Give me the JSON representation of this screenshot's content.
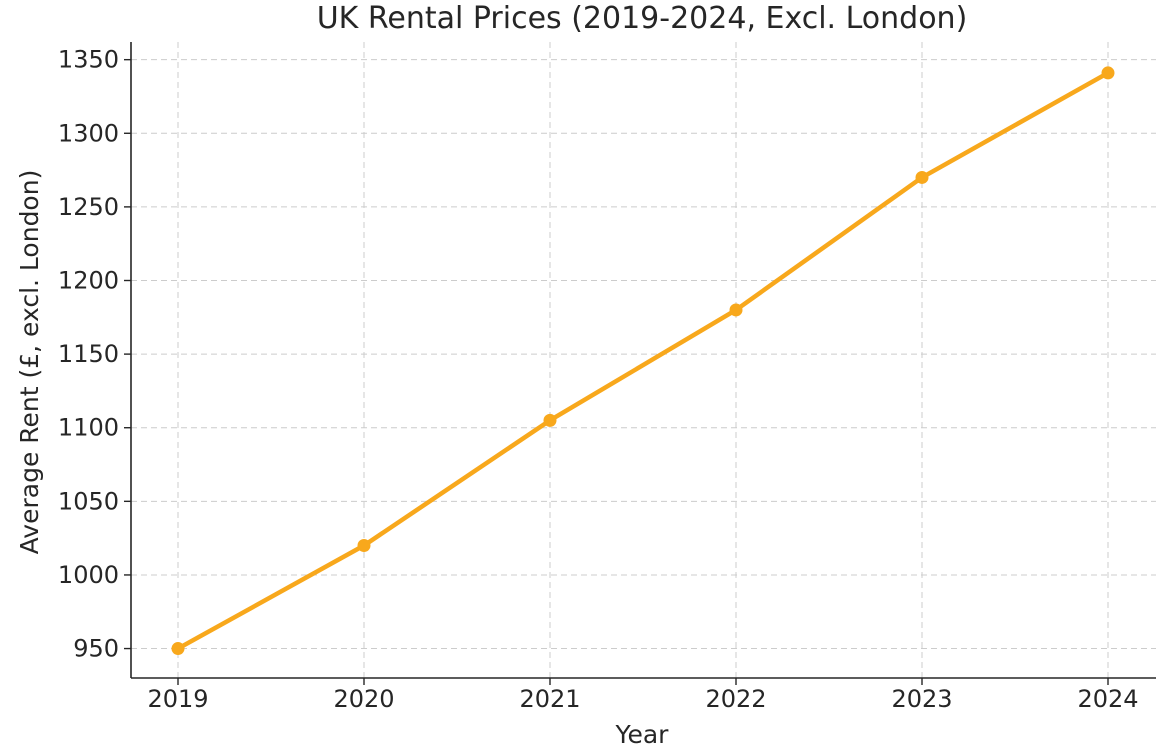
{
  "chart_data": {
    "type": "line",
    "title": "UK Rental Prices (2019-2024, Excl. London)",
    "xlabel": "Year",
    "ylabel": "Average Rent (£, excl. London)",
    "x": [
      "2019",
      "2020",
      "2021",
      "2022",
      "2023",
      "2024"
    ],
    "series": [
      {
        "values": [
          950,
          1020,
          1105,
          1180,
          1270,
          1341
        ],
        "color": "#f8a81c",
        "marker": "circle"
      }
    ],
    "yticks": [
      "950",
      "1000",
      "1050",
      "1100",
      "1150",
      "1200",
      "1250",
      "1300",
      "1350"
    ],
    "ylim": [
      930,
      1362
    ],
    "grid": true,
    "grid_style": "dashed"
  }
}
